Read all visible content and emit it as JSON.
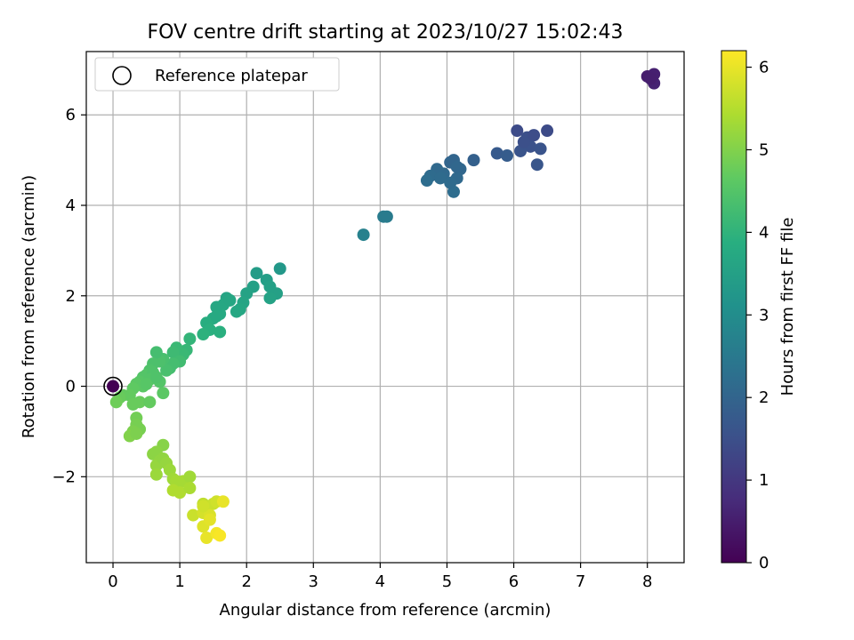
{
  "chart_data": {
    "type": "scatter",
    "title": "FOV centre drift starting at 2023/10/27 15:02:43",
    "xlabel": "Angular distance from reference (arcmin)",
    "ylabel": "Rotation from reference (arcmin)",
    "xlim": [
      -0.4,
      8.55
    ],
    "ylim": [
      -3.9,
      7.4
    ],
    "xticks": [
      0,
      1,
      2,
      3,
      4,
      5,
      6,
      7,
      8
    ],
    "yticks": [
      -2,
      0,
      2,
      4,
      6
    ],
    "ytick_labels": [
      "−2",
      "0",
      "2",
      "4",
      "6"
    ],
    "grid": true,
    "legend": {
      "label": "Reference platepar",
      "placement": "top-left"
    },
    "reference_point": {
      "x": 0,
      "y": 0
    },
    "colorbar": {
      "label": "Hours from first FF file",
      "range": [
        0,
        6.2
      ],
      "ticks": [
        0,
        1,
        2,
        3,
        4,
        5,
        6
      ],
      "colormap": "viridis"
    },
    "points": [
      {
        "x": 8.0,
        "y": 6.85,
        "c": 0.5
      },
      {
        "x": 8.1,
        "y": 6.9,
        "c": 0.55
      },
      {
        "x": 8.1,
        "y": 6.7,
        "c": 0.6
      },
      {
        "x": 8.05,
        "y": 6.8,
        "c": 0.52
      },
      {
        "x": 6.05,
        "y": 5.65,
        "c": 1.4
      },
      {
        "x": 6.2,
        "y": 5.5,
        "c": 1.5
      },
      {
        "x": 6.3,
        "y": 5.55,
        "c": 1.45
      },
      {
        "x": 6.5,
        "y": 5.65,
        "c": 1.4
      },
      {
        "x": 6.25,
        "y": 5.3,
        "c": 1.55
      },
      {
        "x": 6.4,
        "y": 5.25,
        "c": 1.6
      },
      {
        "x": 6.1,
        "y": 5.2,
        "c": 1.6
      },
      {
        "x": 6.35,
        "y": 4.9,
        "c": 1.65
      },
      {
        "x": 6.15,
        "y": 5.4,
        "c": 1.5
      },
      {
        "x": 5.75,
        "y": 5.15,
        "c": 1.75
      },
      {
        "x": 5.9,
        "y": 5.1,
        "c": 1.8
      },
      {
        "x": 5.4,
        "y": 5.0,
        "c": 1.9
      },
      {
        "x": 5.05,
        "y": 4.95,
        "c": 2.0
      },
      {
        "x": 5.1,
        "y": 5.0,
        "c": 2.0
      },
      {
        "x": 5.2,
        "y": 4.8,
        "c": 2.05
      },
      {
        "x": 4.95,
        "y": 4.7,
        "c": 2.1
      },
      {
        "x": 4.85,
        "y": 4.8,
        "c": 2.1
      },
      {
        "x": 4.75,
        "y": 4.65,
        "c": 2.15
      },
      {
        "x": 4.7,
        "y": 4.55,
        "c": 2.2
      },
      {
        "x": 4.9,
        "y": 4.6,
        "c": 2.15
      },
      {
        "x": 5.15,
        "y": 4.6,
        "c": 2.1
      },
      {
        "x": 5.1,
        "y": 4.3,
        "c": 2.2
      },
      {
        "x": 5.05,
        "y": 4.5,
        "c": 2.15
      },
      {
        "x": 5.15,
        "y": 4.85,
        "c": 2.05
      },
      {
        "x": 4.05,
        "y": 3.75,
        "c": 2.55
      },
      {
        "x": 4.1,
        "y": 3.75,
        "c": 2.55
      },
      {
        "x": 3.75,
        "y": 3.35,
        "c": 2.7
      },
      {
        "x": 2.5,
        "y": 2.6,
        "c": 3.3
      },
      {
        "x": 2.15,
        "y": 2.5,
        "c": 3.4
      },
      {
        "x": 2.3,
        "y": 2.35,
        "c": 3.45
      },
      {
        "x": 2.35,
        "y": 2.2,
        "c": 3.5
      },
      {
        "x": 2.1,
        "y": 2.2,
        "c": 3.5
      },
      {
        "x": 2.45,
        "y": 2.05,
        "c": 3.5
      },
      {
        "x": 2.35,
        "y": 1.95,
        "c": 3.55
      },
      {
        "x": 2.0,
        "y": 2.05,
        "c": 3.55
      },
      {
        "x": 1.95,
        "y": 1.85,
        "c": 3.6
      },
      {
        "x": 1.9,
        "y": 1.7,
        "c": 3.65
      },
      {
        "x": 1.85,
        "y": 1.65,
        "c": 3.7
      },
      {
        "x": 1.7,
        "y": 1.95,
        "c": 3.6
      },
      {
        "x": 1.65,
        "y": 1.8,
        "c": 3.7
      },
      {
        "x": 1.6,
        "y": 1.6,
        "c": 3.75
      },
      {
        "x": 1.55,
        "y": 1.75,
        "c": 3.7
      },
      {
        "x": 1.5,
        "y": 1.5,
        "c": 3.8
      },
      {
        "x": 1.4,
        "y": 1.4,
        "c": 3.85
      },
      {
        "x": 1.45,
        "y": 1.25,
        "c": 3.9
      },
      {
        "x": 1.35,
        "y": 1.15,
        "c": 3.95
      },
      {
        "x": 1.6,
        "y": 1.2,
        "c": 3.9
      },
      {
        "x": 1.75,
        "y": 1.9,
        "c": 3.65
      },
      {
        "x": 1.55,
        "y": 1.55,
        "c": 3.75
      },
      {
        "x": 1.15,
        "y": 1.05,
        "c": 4.05
      },
      {
        "x": 1.1,
        "y": 0.8,
        "c": 4.1
      },
      {
        "x": 1.05,
        "y": 0.7,
        "c": 4.15
      },
      {
        "x": 0.95,
        "y": 0.85,
        "c": 4.15
      },
      {
        "x": 0.9,
        "y": 0.75,
        "c": 4.2
      },
      {
        "x": 1.0,
        "y": 0.55,
        "c": 4.25
      },
      {
        "x": 0.9,
        "y": 0.5,
        "c": 4.3
      },
      {
        "x": 0.85,
        "y": 0.4,
        "c": 4.3
      },
      {
        "x": 0.8,
        "y": 0.35,
        "c": 4.35
      },
      {
        "x": 0.75,
        "y": 0.6,
        "c": 4.35
      },
      {
        "x": 0.7,
        "y": 0.55,
        "c": 4.4
      },
      {
        "x": 0.65,
        "y": 0.75,
        "c": 4.3
      },
      {
        "x": 0.6,
        "y": 0.5,
        "c": 4.4
      },
      {
        "x": 0.55,
        "y": 0.35,
        "c": 4.45
      },
      {
        "x": 0.5,
        "y": 0.25,
        "c": 4.5
      },
      {
        "x": 0.45,
        "y": 0.2,
        "c": 4.5
      },
      {
        "x": 0.4,
        "y": 0.1,
        "c": 4.55
      },
      {
        "x": 0.35,
        "y": 0.05,
        "c": 4.6
      },
      {
        "x": 0.45,
        "y": 0.0,
        "c": 4.6
      },
      {
        "x": 0.3,
        "y": -0.05,
        "c": 4.65
      },
      {
        "x": 0.25,
        "y": -0.2,
        "c": 4.7
      },
      {
        "x": 0.15,
        "y": -0.2,
        "c": 4.7
      },
      {
        "x": 0.1,
        "y": -0.25,
        "c": 4.75
      },
      {
        "x": 0.05,
        "y": -0.35,
        "c": 4.8
      },
      {
        "x": 0.3,
        "y": -0.4,
        "c": 4.75
      },
      {
        "x": 0.4,
        "y": -0.35,
        "c": 4.75
      },
      {
        "x": 0.55,
        "y": -0.35,
        "c": 4.7
      },
      {
        "x": 0.75,
        "y": -0.15,
        "c": 4.6
      },
      {
        "x": 0.7,
        "y": 0.1,
        "c": 4.5
      },
      {
        "x": 0.6,
        "y": 0.3,
        "c": 4.45
      },
      {
        "x": 0.55,
        "y": 0.15,
        "c": 4.5
      },
      {
        "x": 0.5,
        "y": 0.05,
        "c": 4.55
      },
      {
        "x": 0.65,
        "y": 0.2,
        "c": 4.45
      },
      {
        "x": 0.35,
        "y": -0.7,
        "c": 4.85
      },
      {
        "x": 0.35,
        "y": -0.85,
        "c": 4.9
      },
      {
        "x": 0.4,
        "y": -0.95,
        "c": 4.9
      },
      {
        "x": 0.3,
        "y": -1.0,
        "c": 4.95
      },
      {
        "x": 0.25,
        "y": -1.1,
        "c": 5.0
      },
      {
        "x": 0.35,
        "y": -1.05,
        "c": 4.95
      },
      {
        "x": 0.6,
        "y": -1.5,
        "c": 5.1
      },
      {
        "x": 0.75,
        "y": -1.3,
        "c": 5.05
      },
      {
        "x": 0.65,
        "y": -1.45,
        "c": 5.1
      },
      {
        "x": 0.7,
        "y": -1.65,
        "c": 5.15
      },
      {
        "x": 0.65,
        "y": -1.75,
        "c": 5.2
      },
      {
        "x": 0.75,
        "y": -1.6,
        "c": 5.15
      },
      {
        "x": 0.8,
        "y": -1.7,
        "c": 5.2
      },
      {
        "x": 0.85,
        "y": -1.85,
        "c": 5.25
      },
      {
        "x": 0.65,
        "y": -1.95,
        "c": 5.25
      },
      {
        "x": 0.9,
        "y": -2.05,
        "c": 5.3
      },
      {
        "x": 0.95,
        "y": -2.1,
        "c": 5.35
      },
      {
        "x": 1.05,
        "y": -2.1,
        "c": 5.35
      },
      {
        "x": 1.15,
        "y": -2.0,
        "c": 5.3
      },
      {
        "x": 0.9,
        "y": -2.3,
        "c": 5.45
      },
      {
        "x": 1.0,
        "y": -2.35,
        "c": 5.45
      },
      {
        "x": 1.15,
        "y": -2.25,
        "c": 5.4
      },
      {
        "x": 1.35,
        "y": -2.6,
        "c": 5.6
      },
      {
        "x": 1.4,
        "y": -2.65,
        "c": 5.65
      },
      {
        "x": 1.5,
        "y": -2.6,
        "c": 5.7
      },
      {
        "x": 1.55,
        "y": -2.55,
        "c": 5.75
      },
      {
        "x": 1.65,
        "y": -2.55,
        "c": 6.0
      },
      {
        "x": 1.2,
        "y": -2.85,
        "c": 5.7
      },
      {
        "x": 1.35,
        "y": -2.8,
        "c": 5.8
      },
      {
        "x": 1.45,
        "y": -2.85,
        "c": 5.85
      },
      {
        "x": 1.35,
        "y": -3.1,
        "c": 5.9
      },
      {
        "x": 1.4,
        "y": -3.35,
        "c": 6.0
      },
      {
        "x": 1.55,
        "y": -3.25,
        "c": 6.1
      },
      {
        "x": 1.6,
        "y": -3.3,
        "c": 6.15
      },
      {
        "x": 1.45,
        "y": -2.95,
        "c": 5.95
      },
      {
        "x": 1.35,
        "y": -2.65,
        "c": 5.75
      },
      {
        "x": 0.0,
        "y": 0.0,
        "c": 0.0
      }
    ]
  }
}
